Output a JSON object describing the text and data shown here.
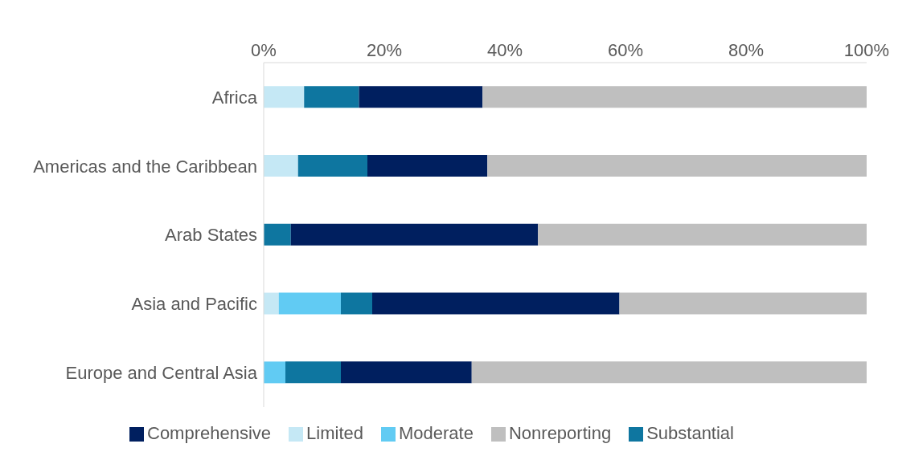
{
  "chart_data": {
    "type": "bar",
    "orientation": "horizontal",
    "stacked": true,
    "categories": [
      "Africa",
      "Americas and the Caribbean",
      "Arab States",
      "Asia and Pacific",
      "Europe and Central Asia"
    ],
    "series": [
      {
        "name": "Limited",
        "color": "#c5e8f5",
        "values": [
          6.7,
          5.7,
          0,
          2.5,
          0
        ]
      },
      {
        "name": "Moderate",
        "color": "#61cbf3",
        "values": [
          0,
          0,
          0,
          10.3,
          3.6
        ]
      },
      {
        "name": "Substantial",
        "color": "#0e76a0",
        "values": [
          9.1,
          11.5,
          4.5,
          5.2,
          9.2
        ]
      },
      {
        "name": "Comprehensive",
        "color": "#001f5f",
        "values": [
          20.5,
          19.9,
          41,
          41,
          21.7
        ]
      },
      {
        "name": "Nonreporting",
        "color": "#bfbfbf",
        "values": [
          63.7,
          62.9,
          54.5,
          41,
          65.5
        ]
      }
    ],
    "xlim": [
      0,
      100
    ],
    "xticks": [
      {
        "value": 0,
        "label": "0%"
      },
      {
        "value": 20,
        "label": "20%"
      },
      {
        "value": 40,
        "label": "40%"
      },
      {
        "value": 60,
        "label": "60%"
      },
      {
        "value": 80,
        "label": "80%"
      },
      {
        "value": 100,
        "label": "100%"
      }
    ],
    "legend": "bottom",
    "grid": false
  }
}
